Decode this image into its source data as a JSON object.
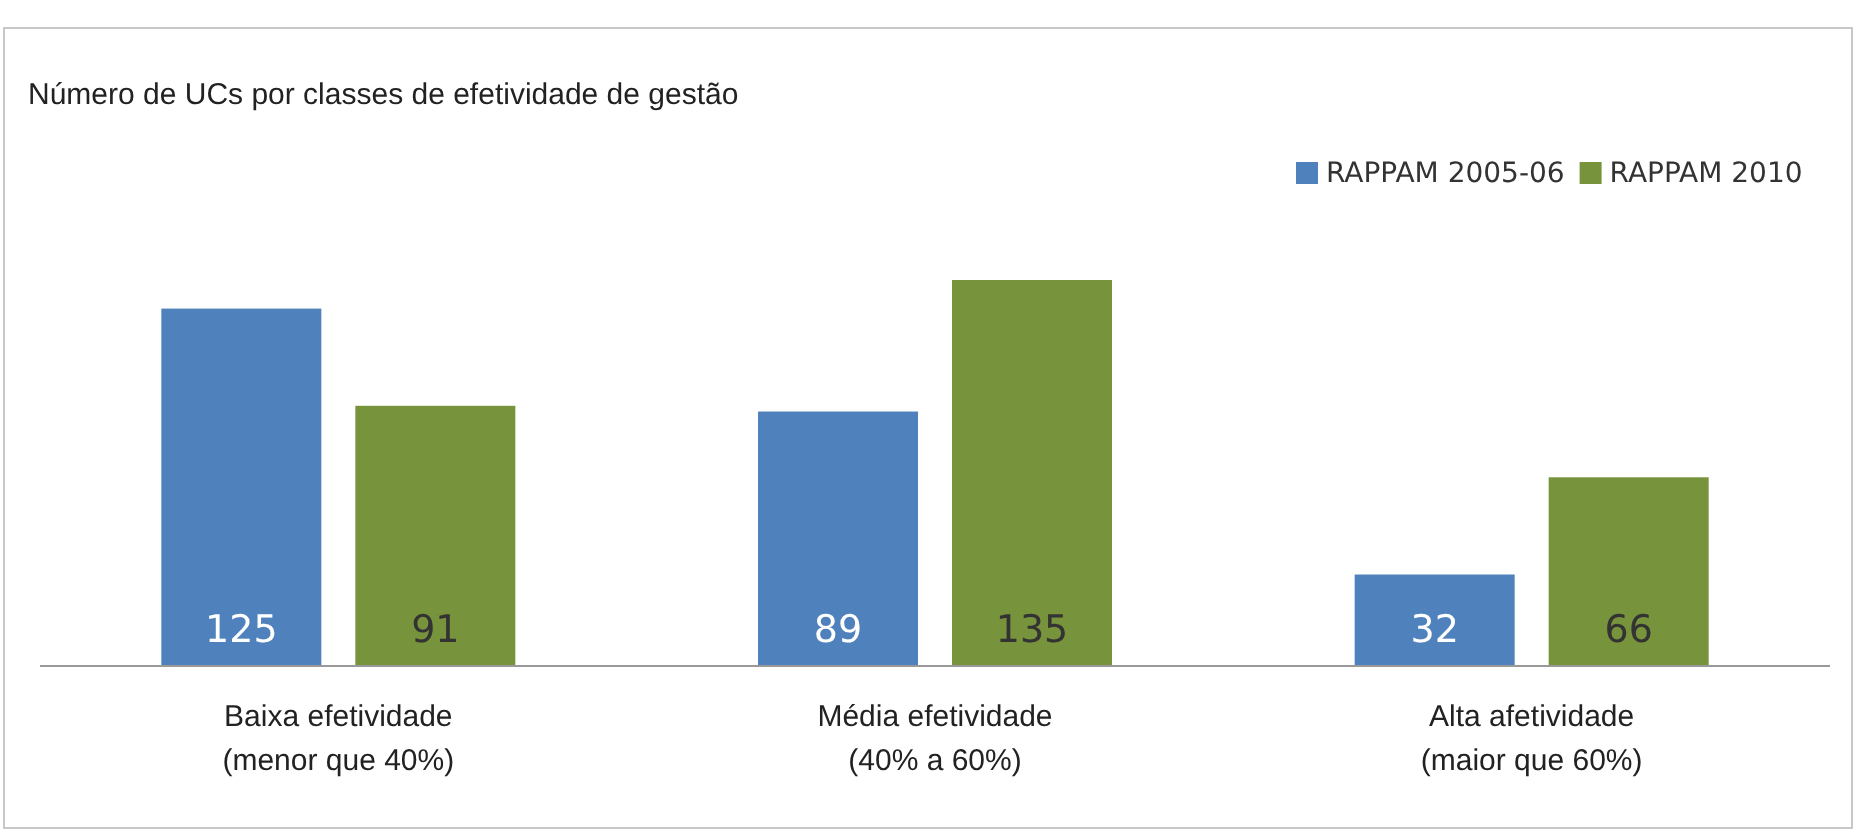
{
  "chart_data": {
    "type": "bar",
    "title": "Número de UCs por classes de efetividade de gestão",
    "categories": [
      "Baixa efetividade\n(menor que 40%)",
      "Média efetividade\n(40% a 60%)",
      "Alta afetividade\n(maior que 60%)"
    ],
    "series": [
      {
        "name": "RAPPAM 2005-06",
        "color": "#4f81bd",
        "values": [
          125,
          89,
          32
        ]
      },
      {
        "name": "RAPPAM 2010",
        "color": "#77933c",
        "values": [
          91,
          135,
          66
        ]
      }
    ],
    "data_labels": true,
    "legend": "top right",
    "grid": false
  }
}
